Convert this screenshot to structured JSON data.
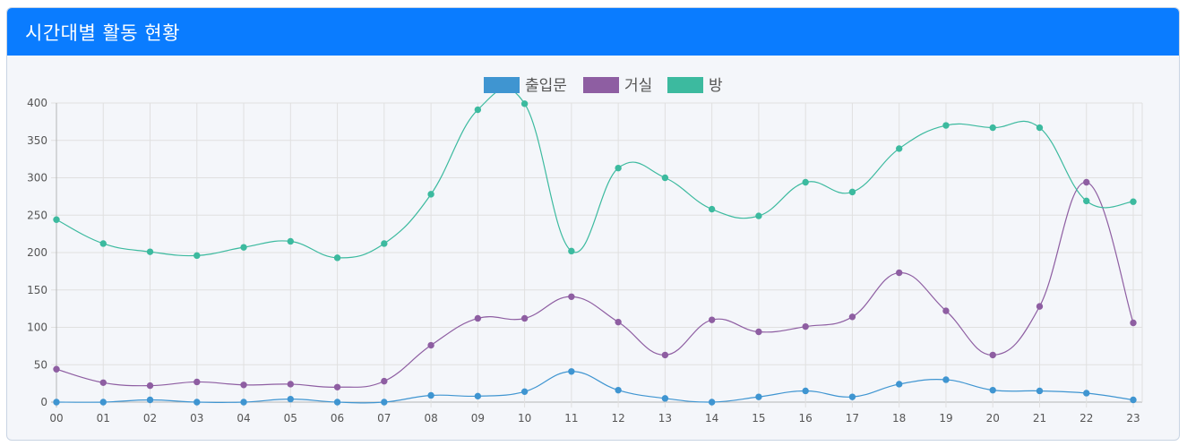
{
  "card": {
    "title": "시간대별 활동 현황"
  },
  "chart_data": {
    "type": "line",
    "title": "",
    "xlabel": "",
    "ylabel": "",
    "categories": [
      "00",
      "01",
      "02",
      "03",
      "04",
      "05",
      "06",
      "07",
      "08",
      "09",
      "10",
      "11",
      "12",
      "13",
      "14",
      "15",
      "16",
      "17",
      "18",
      "19",
      "20",
      "21",
      "22",
      "23"
    ],
    "ylim": [
      0,
      400
    ],
    "yticks": [
      0,
      50,
      100,
      150,
      200,
      250,
      300,
      350,
      400
    ],
    "grid": true,
    "legend_position": "top-center",
    "smooth": true,
    "series": [
      {
        "name": "출입문",
        "color": "#3f95d1",
        "values": [
          0,
          0,
          3,
          0,
          0,
          4,
          0,
          0,
          9,
          8,
          14,
          41,
          16,
          5,
          0,
          7,
          15,
          7,
          24,
          30,
          16,
          15,
          12,
          3
        ]
      },
      {
        "name": "거실",
        "color": "#8e5ea2",
        "values": [
          44,
          26,
          22,
          27,
          23,
          24,
          20,
          28,
          76,
          112,
          112,
          141,
          107,
          63,
          110,
          94,
          101,
          114,
          173,
          122,
          63,
          128,
          294,
          106
        ]
      },
      {
        "name": "방",
        "color": "#3cba9f",
        "values": [
          244,
          212,
          201,
          196,
          207,
          215,
          193,
          212,
          278,
          391,
          399,
          202,
          313,
          300,
          258,
          249,
          294,
          281,
          339,
          370,
          367,
          367,
          269,
          268
        ]
      }
    ]
  }
}
